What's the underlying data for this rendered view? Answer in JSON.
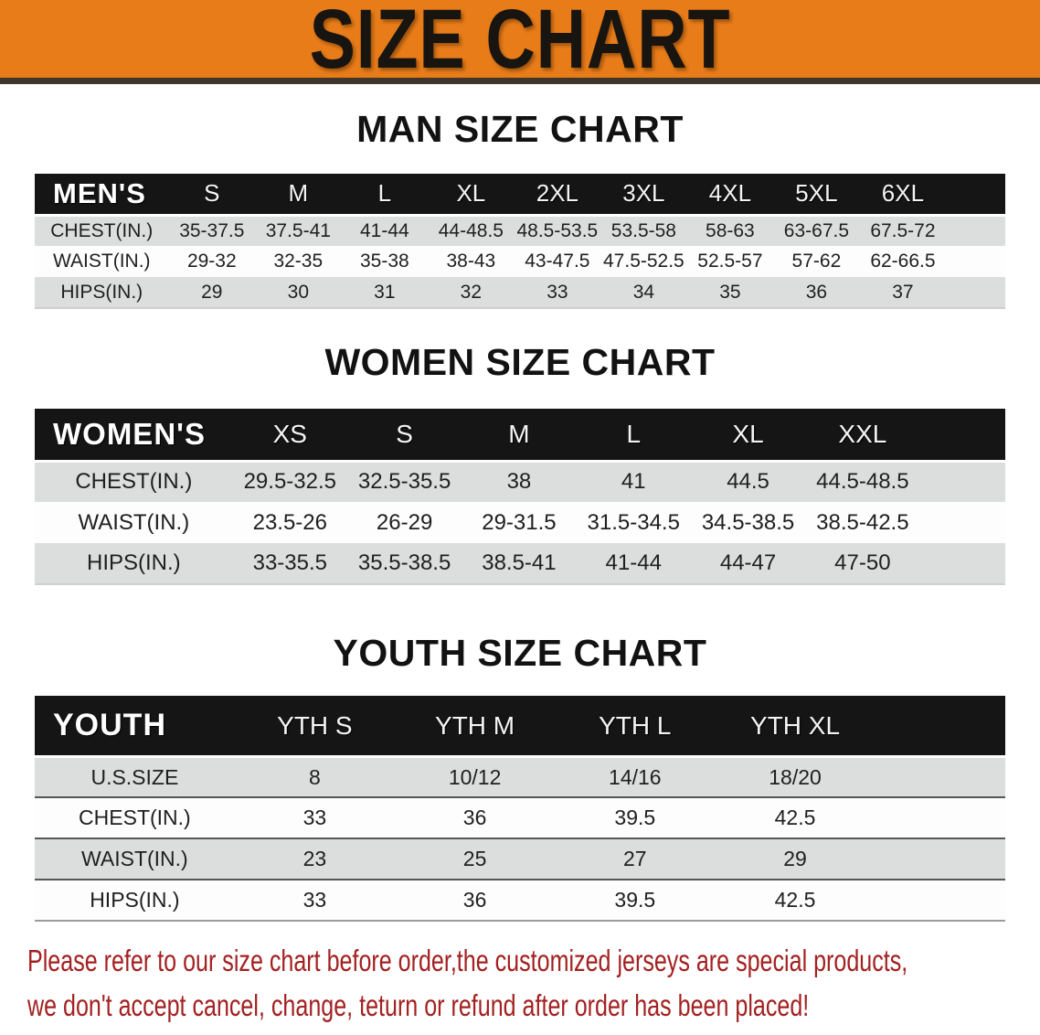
{
  "banner": {
    "title": "SIZE CHART"
  },
  "sections": [
    {
      "heading": "MAN SIZE CHART",
      "table": {
        "header": [
          "MEN'S",
          "S",
          "M",
          "L",
          "XL",
          "2XL",
          "3XL",
          "4XL",
          "5XL",
          "6XL"
        ],
        "rows": [
          {
            "label": "CHEST(IN.)",
            "values": [
              "35-37.5",
              "37.5-41",
              "41-44",
              "44-48.5",
              "48.5-53.5",
              "53.5-58",
              "58-63",
              "63-67.5",
              "67.5-72"
            ]
          },
          {
            "label": "WAIST(IN.)",
            "values": [
              "29-32",
              "32-35",
              "35-38",
              "38-43",
              "43-47.5",
              "47.5-52.5",
              "52.5-57",
              "57-62",
              "62-66.5"
            ]
          },
          {
            "label": "HIPS(IN.)",
            "values": [
              "29",
              "30",
              "31",
              "32",
              "33",
              "34",
              "35",
              "36",
              "37"
            ]
          }
        ]
      }
    },
    {
      "heading": "WOMEN SIZE CHART",
      "table": {
        "header": [
          "WOMEN'S",
          "XS",
          "S",
          "M",
          "L",
          "XL",
          "XXL"
        ],
        "rows": [
          {
            "label": "CHEST(IN.)",
            "values": [
              "29.5-32.5",
              "32.5-35.5",
              "38",
              "41",
              "44.5",
              "44.5-48.5"
            ]
          },
          {
            "label": "WAIST(IN.)",
            "values": [
              "23.5-26",
              "26-29",
              "29-31.5",
              "31.5-34.5",
              "34.5-38.5",
              "38.5-42.5"
            ]
          },
          {
            "label": "HIPS(IN.)",
            "values": [
              "33-35.5",
              "35.5-38.5",
              "38.5-41",
              "41-44",
              "44-47",
              "47-50"
            ]
          }
        ]
      }
    },
    {
      "heading": "YOUTH SIZE CHART",
      "table": {
        "header": [
          "YOUTH",
          "YTH S",
          "YTH M",
          "YTH L",
          "YTH XL"
        ],
        "rows": [
          {
            "label": "U.S.SIZE",
            "values": [
              "8",
              "10/12",
              "14/16",
              "18/20"
            ]
          },
          {
            "label": "CHEST(IN.)",
            "values": [
              "33",
              "36",
              "39.5",
              "42.5"
            ]
          },
          {
            "label": "WAIST(IN.)",
            "values": [
              "23",
              "25",
              "27",
              "29"
            ]
          },
          {
            "label": "HIPS(IN.)",
            "values": [
              "33",
              "36",
              "39.5",
              "42.5"
            ]
          }
        ]
      }
    }
  ],
  "disclaimer": {
    "line1": "Please refer to our size chart before order,the customized jerseys are special products,",
    "line2": "we don't accept cancel, change, teturn or refund after order has been placed!"
  },
  "colors": {
    "banner_bg": "#e87c19",
    "header_bg": "#151515",
    "row_gray": "#dcdede",
    "disclaimer_red": "#a32121"
  }
}
